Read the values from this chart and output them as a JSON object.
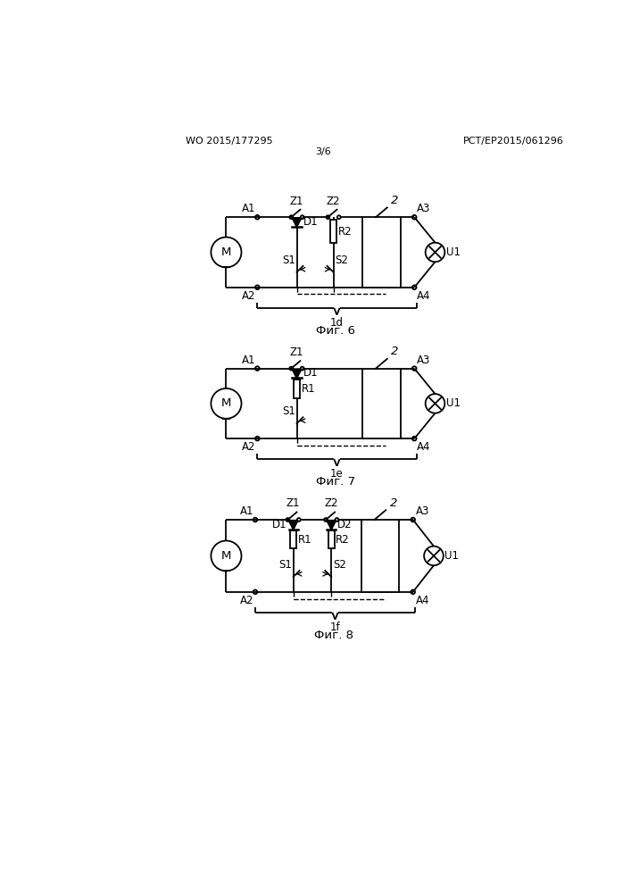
{
  "background_color": "#ffffff",
  "header_left": "WO 2015/177295",
  "header_right": "PCT/EP2015/061296",
  "header_center": "3/6",
  "fig6_label": "Фиг. 6",
  "fig7_label": "Фиг. 7",
  "fig8_label": "Фиг. 8",
  "diagram1_id": "1d",
  "diagram2_id": "1e",
  "diagram3_id": "1f",
  "line_color": "#000000",
  "line_width": 1.3,
  "font_size_labels": 8.5,
  "font_size_header": 8
}
